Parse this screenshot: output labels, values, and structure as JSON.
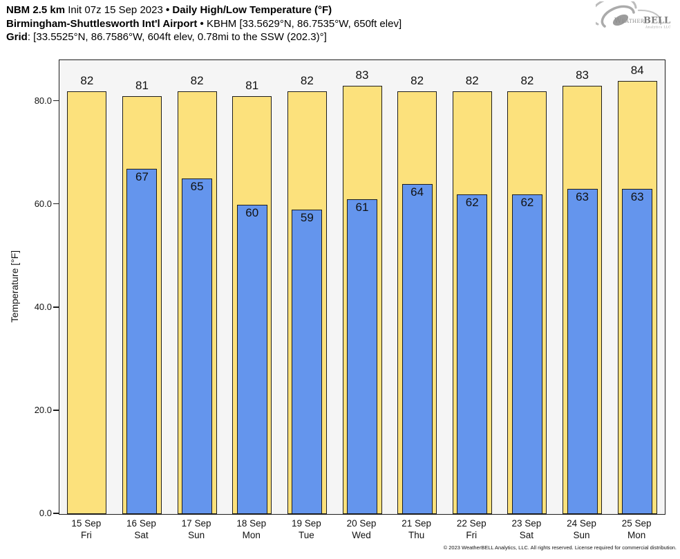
{
  "header": {
    "model": "NBM 2.5 km",
    "init": "Init 07z 15 Sep 2023",
    "sep": "•",
    "product": "Daily High/Low Temperature (°F)",
    "station_name": "Birmingham-Shuttlesworth Int'l Airport",
    "station_info": "KBHM [33.5629°N, 86.7535°W, 650ft elev]",
    "grid_label": "Grid",
    "grid_info": ": [33.5525°N, 86.7586°W, 604ft elev, 0.78mi to the SSW (202.3)°]"
  },
  "logo": {
    "name_prefix": "Weather",
    "name_suffix": "BELL",
    "subtitle": "Analytics LLC"
  },
  "chart_data": {
    "type": "bar",
    "title": "Daily High/Low Temperature (°F)",
    "xlabel": "",
    "ylabel": "Temperature [°F]",
    "ylim": [
      0,
      88
    ],
    "grid": false,
    "legend_position": "none",
    "yticks": [
      {
        "value": 0,
        "label": "0.0"
      },
      {
        "value": 20,
        "label": "20.0"
      },
      {
        "value": 40,
        "label": "40.0"
      },
      {
        "value": 60,
        "label": "60.0"
      },
      {
        "value": 80,
        "label": "80.0"
      }
    ],
    "categories": [
      {
        "date": "15 Sep",
        "day": "Fri"
      },
      {
        "date": "16 Sep",
        "day": "Sat"
      },
      {
        "date": "17 Sep",
        "day": "Sun"
      },
      {
        "date": "18 Sep",
        "day": "Mon"
      },
      {
        "date": "19 Sep",
        "day": "Tue"
      },
      {
        "date": "20 Sep",
        "day": "Wed"
      },
      {
        "date": "21 Sep",
        "day": "Thu"
      },
      {
        "date": "22 Sep",
        "day": "Fri"
      },
      {
        "date": "23 Sep",
        "day": "Sat"
      },
      {
        "date": "24 Sep",
        "day": "Sun"
      },
      {
        "date": "25 Sep",
        "day": "Mon"
      }
    ],
    "series": [
      {
        "name": "High",
        "color": "#fce17c",
        "values": [
          82,
          81,
          82,
          81,
          82,
          83,
          82,
          82,
          82,
          83,
          84
        ]
      },
      {
        "name": "Low",
        "color": "#6495ed",
        "values": [
          null,
          67,
          65,
          60,
          59,
          61,
          64,
          62,
          62,
          63,
          63
        ]
      }
    ]
  },
  "colors": {
    "plot_background": "#f5f5f5",
    "bar_border": "#1c1c1c",
    "high_fill": "#fce17c",
    "low_fill": "#6495ed",
    "logo_gray": "#a8a8a8"
  },
  "footer": {
    "copyright": "© 2023 WeatherBELL Analytics, LLC. All rights reserved. License required for commercial distribution."
  }
}
